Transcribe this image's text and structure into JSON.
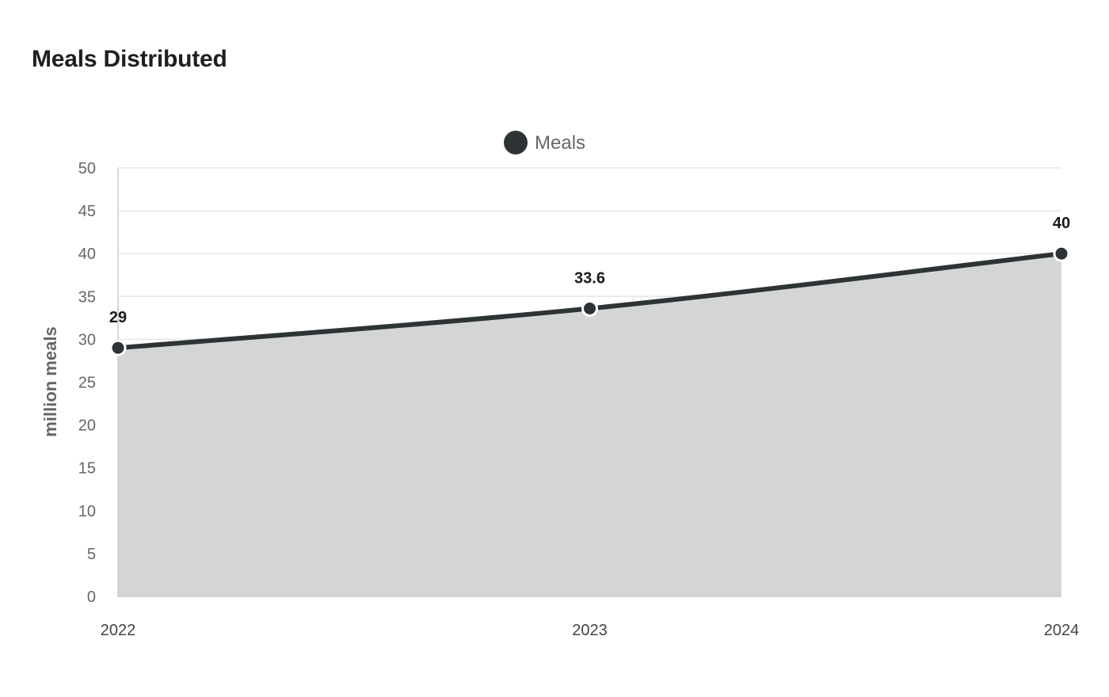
{
  "title": "Meals Distributed",
  "colors": {
    "series_line": "#2e3436",
    "series_fill": "#d4d6d6",
    "grid": "#e6e6e6",
    "axis": "#cccccc",
    "marker_stroke": "#ffffff"
  },
  "chart_data": {
    "type": "area",
    "title": "Meals Distributed",
    "categories": [
      "2022",
      "2023",
      "2024"
    ],
    "series": [
      {
        "name": "Meals",
        "values": [
          29,
          33.6,
          40
        ]
      }
    ],
    "data_labels": [
      "29",
      "33.6",
      "40"
    ],
    "xlabel": "",
    "ylabel": "million meals",
    "ylim": [
      0,
      50
    ],
    "yticks": [
      "0",
      "5",
      "10",
      "15",
      "20",
      "25",
      "30",
      "35",
      "40",
      "45",
      "50"
    ],
    "grid": true,
    "legend_position": "top-center",
    "smooth": true
  }
}
